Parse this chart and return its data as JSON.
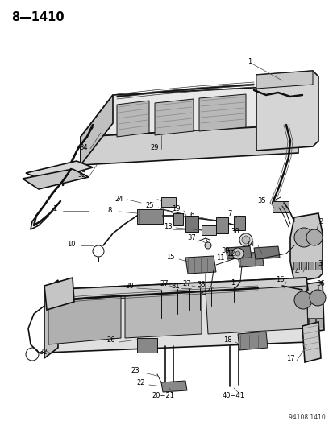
{
  "title": "8—1410",
  "footer": "94108 1410",
  "background_color": "#ffffff",
  "line_color": "#111111",
  "text_color": "#000000",
  "fig_width": 4.14,
  "fig_height": 5.33,
  "dpi": 100,
  "label_fs": 6.0,
  "title_fs": 10.5,
  "footer_fs": 5.5
}
